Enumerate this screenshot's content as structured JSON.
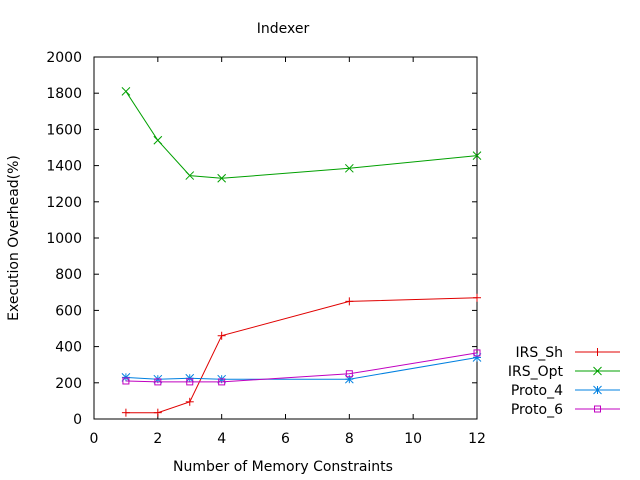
{
  "chart_data": {
    "type": "line",
    "title": "Indexer",
    "xlabel": "Number of Memory Constraints",
    "ylabel": "Execution Overhead(%)",
    "xlim": [
      0,
      12
    ],
    "ylim": [
      0,
      2000
    ],
    "xticks": [
      0,
      2,
      4,
      6,
      8,
      10,
      12
    ],
    "yticks": [
      0,
      200,
      400,
      600,
      800,
      1000,
      1200,
      1400,
      1600,
      1800,
      2000
    ],
    "grid": false,
    "legend_position": "outside-right-bottom",
    "series": [
      {
        "name": "IRS_Sh",
        "color": "#e00000",
        "marker": "plus",
        "x": [
          1,
          2,
          3,
          4,
          8,
          12
        ],
        "y": [
          35,
          35,
          95,
          460,
          650,
          670
        ]
      },
      {
        "name": "IRS_Opt",
        "color": "#00a000",
        "marker": "cross",
        "x": [
          1,
          2,
          3,
          4,
          8,
          12
        ],
        "y": [
          1810,
          1540,
          1345,
          1330,
          1385,
          1455
        ]
      },
      {
        "name": "Proto_4",
        "color": "#0080e0",
        "marker": "asterisk",
        "x": [
          1,
          2,
          3,
          4,
          8,
          12
        ],
        "y": [
          230,
          220,
          225,
          220,
          220,
          340
        ]
      },
      {
        "name": "Proto_6",
        "color": "#c000c0",
        "marker": "square",
        "x": [
          1,
          2,
          3,
          4,
          8,
          12
        ],
        "y": [
          210,
          205,
          205,
          205,
          250,
          365
        ]
      }
    ]
  }
}
